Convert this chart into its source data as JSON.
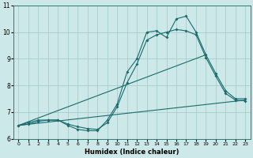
{
  "xlabel": "Humidex (Indice chaleur)",
  "xlim": [
    -0.5,
    23.5
  ],
  "ylim": [
    6,
    11
  ],
  "yticks": [
    6,
    7,
    8,
    9,
    10,
    11
  ],
  "xticks": [
    0,
    1,
    2,
    3,
    4,
    5,
    6,
    7,
    8,
    9,
    10,
    11,
    12,
    13,
    14,
    15,
    16,
    17,
    18,
    19,
    20,
    21,
    22,
    23
  ],
  "bg_color": "#cce8e8",
  "grid_color": "#aacccc",
  "line_color": "#1a6b6b",
  "lines": [
    {
      "x": [
        0,
        1,
        2,
        3,
        4,
        5,
        6,
        7,
        8,
        9,
        10,
        11,
        12,
        13,
        14,
        15,
        16,
        17,
        18,
        19,
        20,
        21,
        22,
        23
      ],
      "y": [
        6.5,
        6.6,
        6.7,
        6.7,
        6.7,
        6.5,
        6.35,
        6.3,
        6.3,
        6.7,
        7.3,
        8.5,
        9.0,
        10.0,
        10.05,
        9.8,
        10.5,
        10.6,
        10.0,
        9.15,
        8.45,
        7.8,
        7.5,
        7.5
      ],
      "markers": true
    },
    {
      "x": [
        0,
        1,
        2,
        3,
        4,
        5,
        6,
        7,
        8,
        9,
        10,
        11,
        12,
        13,
        14,
        15,
        16,
        17,
        18,
        19,
        20,
        21,
        22,
        23
      ],
      "y": [
        6.5,
        6.55,
        6.65,
        6.7,
        6.7,
        6.55,
        6.45,
        6.38,
        6.35,
        6.6,
        7.2,
        8.1,
        8.8,
        9.7,
        9.9,
        10.0,
        10.1,
        10.05,
        9.9,
        9.05,
        8.35,
        7.7,
        7.45,
        7.42
      ],
      "markers": true
    },
    {
      "x": [
        0,
        23
      ],
      "y": [
        6.5,
        7.45
      ],
      "markers": false
    },
    {
      "x": [
        0,
        19
      ],
      "y": [
        6.5,
        9.15
      ],
      "markers": false
    }
  ]
}
